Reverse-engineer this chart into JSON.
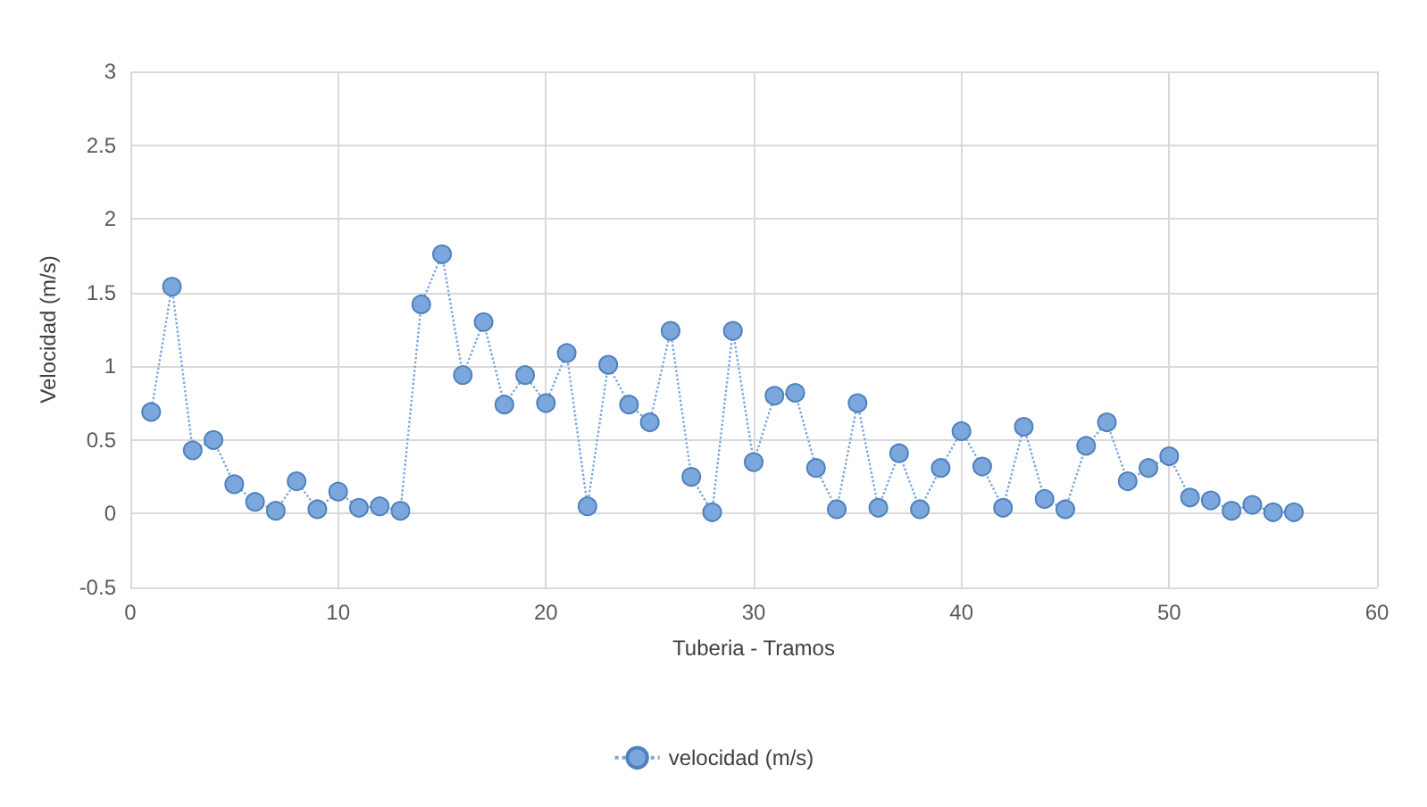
{
  "chart_data": {
    "type": "line",
    "xlabel": "Tuberia - Tramos",
    "ylabel": "Velocidad (m/s)",
    "x": [
      1,
      2,
      3,
      4,
      5,
      6,
      7,
      8,
      9,
      10,
      11,
      12,
      13,
      14,
      15,
      16,
      17,
      18,
      19,
      20,
      21,
      22,
      23,
      24,
      25,
      26,
      27,
      28,
      29,
      30,
      31,
      32,
      33,
      34,
      35,
      36,
      37,
      38,
      39,
      40,
      41,
      42,
      43,
      44,
      45,
      46,
      47,
      48,
      49,
      50,
      51,
      52,
      53,
      54,
      55,
      56
    ],
    "series": [
      {
        "name": "velocidad (m/s)",
        "color": "#7ba7dc",
        "values": [
          0.69,
          1.54,
          0.43,
          0.5,
          0.2,
          0.08,
          0.02,
          0.22,
          0.03,
          0.15,
          0.04,
          0.05,
          0.02,
          1.42,
          1.76,
          0.94,
          1.3,
          0.74,
          0.94,
          0.75,
          1.09,
          0.05,
          1.01,
          0.74,
          0.62,
          1.24,
          0.25,
          0.01,
          1.24,
          0.35,
          0.8,
          0.82,
          0.31,
          0.03,
          0.75,
          0.04,
          0.41,
          0.03,
          0.31,
          0.56,
          0.32,
          0.04,
          0.59,
          0.1,
          0.03,
          0.46,
          0.62,
          0.22,
          0.31,
          0.39,
          0.11,
          0.09,
          0.02,
          0.06,
          0.01,
          0.01
        ]
      }
    ],
    "xlim": [
      0,
      60
    ],
    "xticks": [
      0,
      10,
      20,
      30,
      40,
      50,
      60
    ],
    "ylim": [
      -0.5,
      3
    ],
    "yticks": [
      -0.5,
      0,
      0.5,
      1,
      1.5,
      2,
      2.5,
      3
    ],
    "grid": true,
    "legend": "bottom",
    "marker": "circle",
    "line_style": "dotted"
  }
}
